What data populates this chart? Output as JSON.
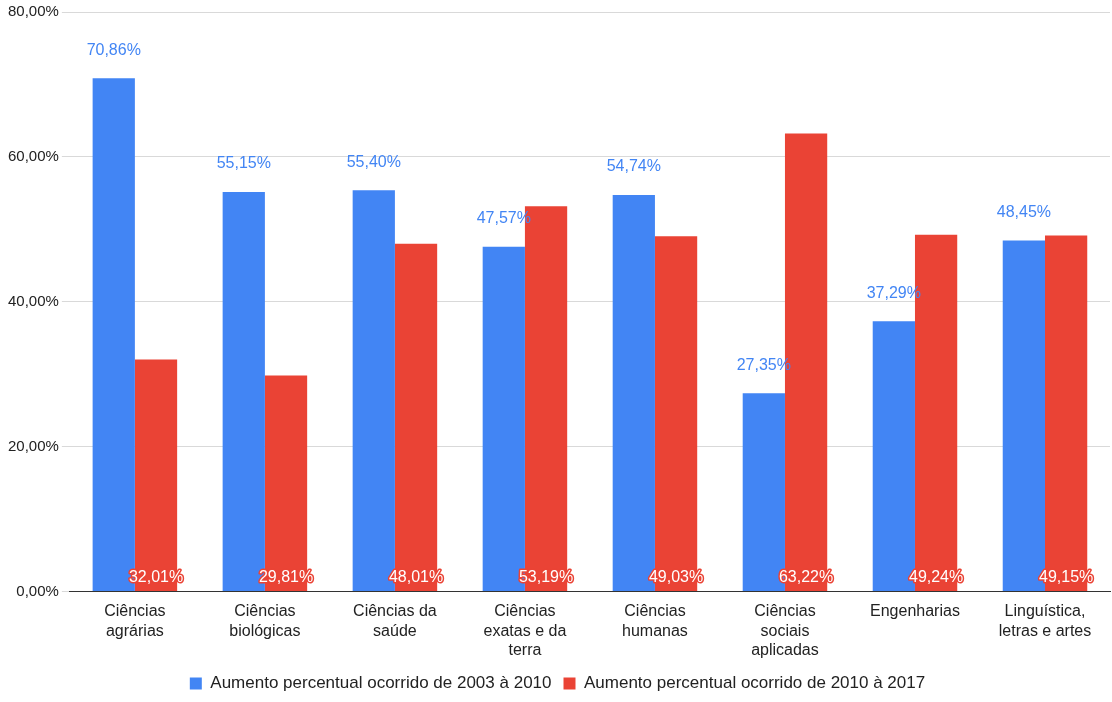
{
  "chart_data": {
    "type": "bar",
    "categories": [
      "Ciências agrárias",
      "Ciências biológicas",
      "Ciências da saúde",
      "Ciências exatas e da terra",
      "Ciências humanas",
      "Ciências sociais aplicadas",
      "Engenharias",
      "Linguística, letras e artes"
    ],
    "series": [
      {
        "name": "Aumento percentual ocorrido de 2003 à 2010",
        "color": "#4285f4",
        "values": [
          70.86,
          55.15,
          55.4,
          47.57,
          54.74,
          27.35,
          37.29,
          48.45
        ],
        "value_labels": [
          "70,86%",
          "55,15%",
          "55,40%",
          "47,57%",
          "54,74%",
          "27,35%",
          "37,29%",
          "48,45%"
        ]
      },
      {
        "name": "Aumento percentual ocorrido de 2010 à 2017",
        "color": "#ea4335",
        "values": [
          32.01,
          29.81,
          48.01,
          53.19,
          49.03,
          63.22,
          49.24,
          49.15
        ],
        "value_labels": [
          "32,01%",
          "29,81%",
          "48,01%",
          "53,19%",
          "49,03%",
          "63,22%",
          "49,24%",
          "49,15%"
        ]
      }
    ],
    "ylim": [
      0,
      80
    ],
    "yticks": [
      {
        "value": 0,
        "label": "0,00%"
      },
      {
        "value": 20,
        "label": "20,00%"
      },
      {
        "value": 40,
        "label": "40,00%"
      },
      {
        "value": 60,
        "label": "60,00%"
      },
      {
        "value": 80,
        "label": "80,00%"
      }
    ],
    "grid": "y",
    "legend": "bottom"
  }
}
